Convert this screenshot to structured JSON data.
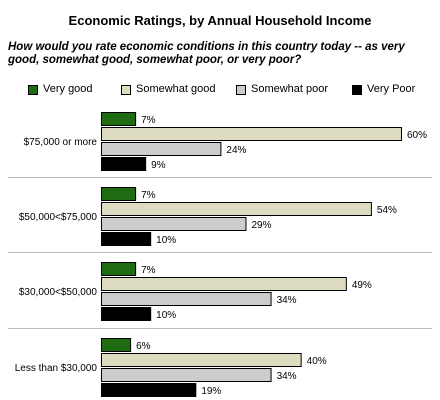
{
  "chart_data": {
    "type": "bar",
    "orientation": "horizontal",
    "title": "Economic Ratings, by Annual Household Income",
    "subtitle": "How would you rate economic conditions in this country today -- as very good, somewhat good, somewhat poor, or very poor?",
    "categories": [
      "$75,000 or more",
      "$50,000<$75,000",
      "$30,000<$50,000",
      "Less than $30,000"
    ],
    "series": [
      {
        "name": "Very good",
        "color": "#1e6b12",
        "values": [
          7,
          7,
          7,
          6
        ],
        "labels": [
          "7%",
          "7%",
          "7%",
          "6%"
        ]
      },
      {
        "name": "Somewhat good",
        "color": "#dedcc0",
        "values": [
          60,
          54,
          49,
          40
        ],
        "labels": [
          "60%",
          "54%",
          "49%",
          "40%"
        ]
      },
      {
        "name": "Somewhat poor",
        "color": "#cccccc",
        "values": [
          24,
          29,
          34,
          34
        ],
        "labels": [
          "24%",
          "29%",
          "34%",
          "34%"
        ]
      },
      {
        "name": "Very Poor",
        "color": "#000000",
        "values": [
          9,
          10,
          10,
          19
        ],
        "labels": [
          "9%",
          "10%",
          "10%",
          "19%"
        ]
      }
    ],
    "xlim": [
      0,
      60
    ],
    "grid": false,
    "legend_position": "top"
  }
}
